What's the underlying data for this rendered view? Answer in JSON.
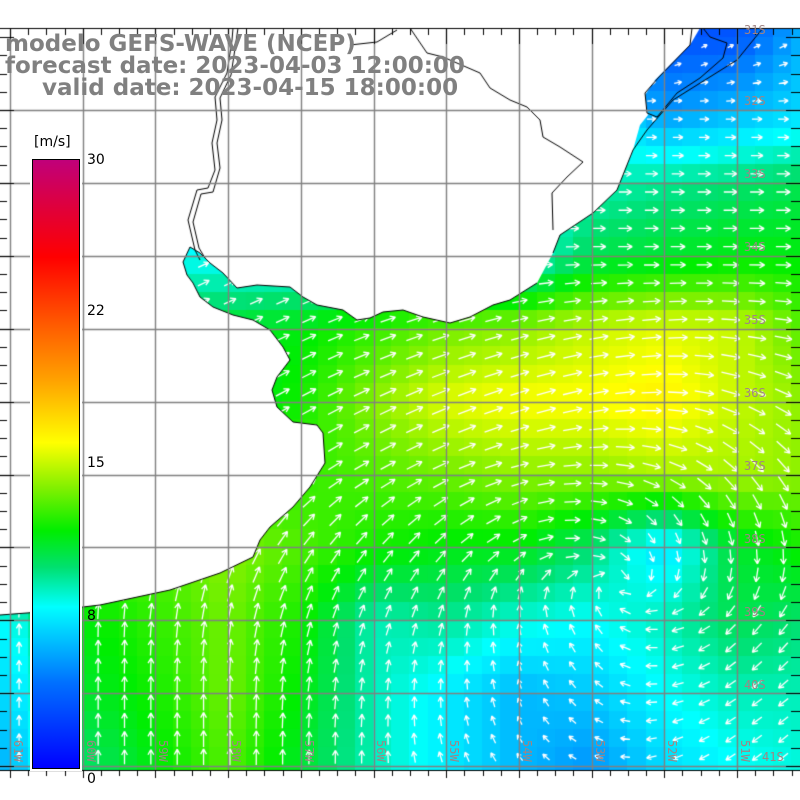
{
  "title": {
    "line1": "modelo GEFS-WAVE (NCEP)",
    "line2": "forecast date: 2023-04-03 12:00:00",
    "line3": "valid date: 2023-04-15 18:00:00"
  },
  "colorbar": {
    "unit": "[m/s]",
    "labels": [
      "30",
      "22",
      "15",
      "8",
      "0"
    ],
    "min": 0,
    "max": 30
  },
  "lat_labels": [
    "31S",
    "32S",
    "33S",
    "34S",
    "35S",
    "36S",
    "37S",
    "38S",
    "39S",
    "40S",
    "41S"
  ],
  "lon_labels": [
    "61W",
    "60W",
    "59W",
    "58W",
    "57W",
    "56W",
    "55W",
    "54W",
    "53W",
    "52W",
    "51W"
  ],
  "colors": {
    "land": "#ffffff",
    "grid": "#808080",
    "coast": "#000000",
    "arrow": "#ffffff",
    "title": "#808080"
  },
  "field_data": {
    "variable": "wind speed [m/s] and direction (deg, toward)",
    "lats": [
      31,
      32,
      33,
      34,
      35,
      36,
      37,
      38,
      39,
      40,
      41
    ],
    "lons": [
      -61,
      -60,
      -59,
      -58,
      -57,
      -56,
      -55,
      -54,
      -53,
      -52,
      -51,
      -50
    ],
    "speed": [
      [
        8,
        8,
        8,
        8,
        8,
        8,
        8,
        8,
        6,
        3,
        3,
        6
      ],
      [
        8,
        8,
        8,
        8,
        8,
        8,
        8,
        8,
        8,
        5,
        6,
        7
      ],
      [
        8,
        8,
        8,
        8,
        8,
        8,
        8,
        8,
        9,
        9.5,
        10,
        10.5
      ],
      [
        8,
        8,
        8,
        8,
        8,
        8,
        8,
        8,
        10.5,
        11,
        11.5,
        11.5
      ],
      [
        11,
        11,
        11,
        11,
        11.5,
        12.5,
        13.5,
        14,
        15,
        15.5,
        15,
        13
      ],
      [
        11,
        11,
        11,
        11,
        12,
        14,
        15.5,
        16,
        16,
        16.5,
        15,
        14
      ],
      [
        12,
        12,
        12,
        12,
        12.5,
        13,
        13.5,
        14,
        14,
        14.5,
        14.5,
        14
      ],
      [
        13,
        13,
        13,
        14,
        13,
        12,
        11.5,
        11.5,
        10,
        7,
        11,
        12
      ],
      [
        8,
        11.5,
        12.5,
        13.5,
        12,
        9,
        9.5,
        8.5,
        8,
        9,
        10.5,
        10
      ],
      [
        7,
        11,
        12,
        13.5,
        11.5,
        9,
        7.5,
        6,
        6.5,
        8,
        9,
        9
      ],
      [
        6,
        10,
        11.5,
        13,
        11,
        9,
        7.5,
        6,
        5,
        7,
        8,
        8.5
      ]
    ],
    "direction": [
      [
        70,
        70,
        70,
        70,
        70,
        70,
        70,
        70,
        70,
        60,
        60,
        60
      ],
      [
        90,
        90,
        90,
        90,
        90,
        90,
        90,
        90,
        90,
        90,
        90,
        90
      ],
      [
        90,
        90,
        90,
        90,
        90,
        90,
        90,
        90,
        90,
        90,
        90,
        90
      ],
      [
        65,
        65,
        65,
        65,
        70,
        75,
        80,
        85,
        90,
        90,
        90,
        90
      ],
      [
        65,
        65,
        65,
        65,
        65,
        70,
        72,
        75,
        80,
        85,
        95,
        100
      ],
      [
        55,
        55,
        60,
        60,
        62,
        65,
        68,
        72,
        78,
        90,
        110,
        120
      ],
      [
        40,
        40,
        45,
        50,
        55,
        60,
        65,
        75,
        90,
        110,
        135,
        145
      ],
      [
        15,
        15,
        20,
        25,
        35,
        40,
        45,
        60,
        100,
        160,
        170,
        175
      ],
      [
        0,
        0,
        5,
        10,
        15,
        20,
        15,
        350,
        330,
        260,
        220,
        215
      ],
      [
        0,
        0,
        0,
        0,
        5,
        5,
        0,
        340,
        310,
        260,
        235,
        230
      ],
      [
        0,
        0,
        0,
        0,
        0,
        0,
        340,
        320,
        290,
        250,
        235,
        230
      ]
    ]
  }
}
